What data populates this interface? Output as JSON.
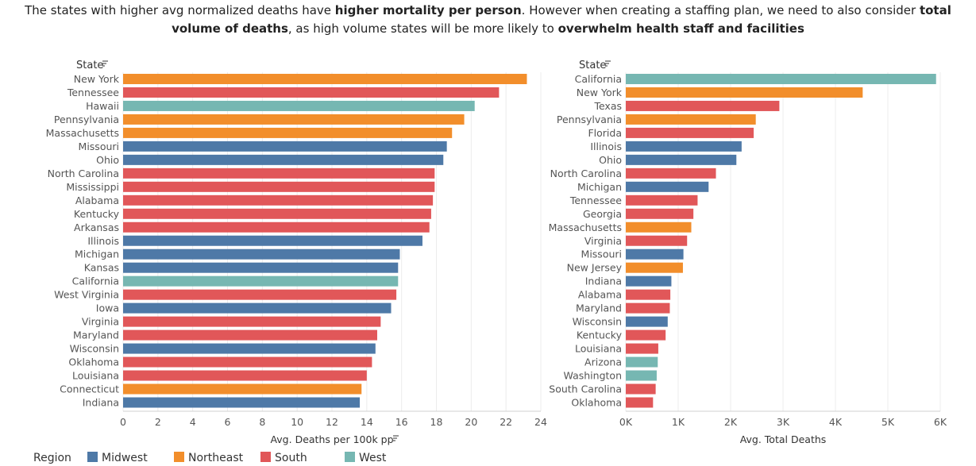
{
  "headline": {
    "t1": "The states with higher avg normalized deaths have ",
    "b1": "higher mortality per person",
    "t2": ". However when creating a staffing plan, we need to also consider ",
    "b2": "total volume of deaths",
    "t3": ", as high volume states will be more likely to ",
    "b3": "overwhelm health staff and facilities"
  },
  "legend": {
    "title": "Region",
    "items": [
      {
        "label": "Midwest",
        "color": "#4e79a7"
      },
      {
        "label": "Northeast",
        "color": "#f28e2b"
      },
      {
        "label": "South",
        "color": "#e15759"
      },
      {
        "label": "West",
        "color": "#76b7b2"
      }
    ]
  },
  "chart_data": [
    {
      "type": "bar",
      "orientation": "horizontal",
      "row_header": "State",
      "xlabel": "Avg. Deaths per 100k pp",
      "xlim": [
        0,
        24
      ],
      "xticks": [
        "0",
        "2",
        "4",
        "6",
        "8",
        "10",
        "12",
        "14",
        "16",
        "18",
        "20",
        "22",
        "24"
      ],
      "grid": "vertical",
      "categories": [
        "New York",
        "Tennessee",
        "Hawaii",
        "Pennsylvania",
        "Massachusetts",
        "Missouri",
        "Ohio",
        "North Carolina",
        "Mississippi",
        "Alabama",
        "Kentucky",
        "Arkansas",
        "Illinois",
        "Michigan",
        "Kansas",
        "California",
        "West Virginia",
        "Iowa",
        "Virginia",
        "Maryland",
        "Wisconsin",
        "Oklahoma",
        "Louisiana",
        "Connecticut",
        "Indiana"
      ],
      "values": [
        23.2,
        21.6,
        20.2,
        19.6,
        18.9,
        18.6,
        18.4,
        17.9,
        17.9,
        17.8,
        17.7,
        17.6,
        17.2,
        15.9,
        15.8,
        15.8,
        15.7,
        15.4,
        14.8,
        14.6,
        14.5,
        14.3,
        14.0,
        13.7,
        13.6
      ],
      "regions": [
        "Northeast",
        "South",
        "West",
        "Northeast",
        "Northeast",
        "Midwest",
        "Midwest",
        "South",
        "South",
        "South",
        "South",
        "South",
        "Midwest",
        "Midwest",
        "Midwest",
        "West",
        "South",
        "Midwest",
        "South",
        "South",
        "Midwest",
        "South",
        "South",
        "Northeast",
        "Midwest"
      ]
    },
    {
      "type": "bar",
      "orientation": "horizontal",
      "row_header": "State",
      "xlabel": "Avg. Total Deaths",
      "xlim": [
        0,
        6000
      ],
      "xticks": [
        "0K",
        "1K",
        "2K",
        "3K",
        "4K",
        "5K",
        "6K"
      ],
      "grid": "vertical",
      "categories": [
        "California",
        "New York",
        "Texas",
        "Pennsylvania",
        "Florida",
        "Illinois",
        "Ohio",
        "North Carolina",
        "Michigan",
        "Tennessee",
        "Georgia",
        "Massachusetts",
        "Virginia",
        "Missouri",
        "New Jersey",
        "Indiana",
        "Alabama",
        "Maryland",
        "Wisconsin",
        "Kentucky",
        "Louisiana",
        "Arizona",
        "Washington",
        "South Carolina",
        "Oklahoma"
      ],
      "values": [
        5920,
        4520,
        2930,
        2480,
        2440,
        2210,
        2110,
        1720,
        1580,
        1370,
        1290,
        1250,
        1170,
        1100,
        1090,
        870,
        850,
        840,
        800,
        760,
        620,
        610,
        590,
        570,
        520
      ],
      "regions": [
        "West",
        "Northeast",
        "South",
        "Northeast",
        "South",
        "Midwest",
        "Midwest",
        "South",
        "Midwest",
        "South",
        "South",
        "Northeast",
        "South",
        "Midwest",
        "Northeast",
        "Midwest",
        "South",
        "South",
        "Midwest",
        "South",
        "South",
        "West",
        "West",
        "South",
        "South"
      ]
    }
  ]
}
